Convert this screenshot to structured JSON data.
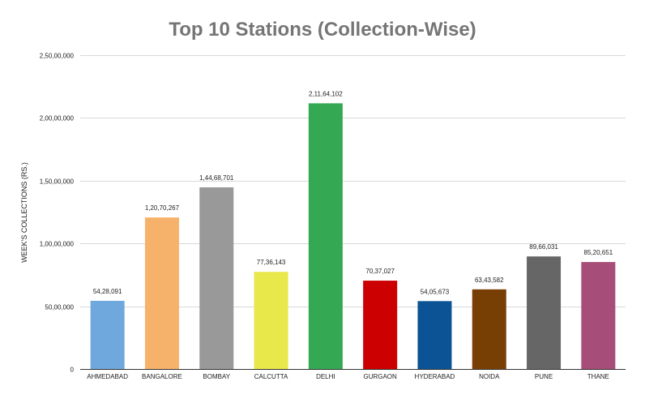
{
  "chart_data": {
    "type": "bar",
    "title": "Top 10 Stations (Collection-Wise)",
    "xlabel": "",
    "ylabel": "WEEK'S COLLECTIONS (RS.)",
    "ylim": [
      0,
      25000000
    ],
    "yticks": [
      0,
      5000000,
      10000000,
      15000000,
      20000000,
      25000000
    ],
    "ytick_labels": [
      "0",
      "50,00,000",
      "1,00,00,000",
      "1,50,00,000",
      "2,00,00,000",
      "2,50,00,000"
    ],
    "grid": true,
    "categories": [
      "AHMEDABAD",
      "BANGALORE",
      "BOMBAY",
      "CALCUTTA",
      "DELHI",
      "GURGAON",
      "HYDERABAD",
      "NOIDA",
      "PUNE",
      "THANE"
    ],
    "values": [
      5428091,
      12070267,
      14468701,
      7736143,
      21164102,
      7037027,
      5405673,
      6343582,
      8966031,
      8520651
    ],
    "data_labels": [
      "54,28,091",
      "1,20,70,267",
      "1,44,68,701",
      "77,36,143",
      "2,11,64,102",
      "70,37,027",
      "54,05,673",
      "63,43,582",
      "89,66,031",
      "85,20,651"
    ],
    "colors": [
      "#6fa8dc",
      "#f6b26b",
      "#999999",
      "#e8e84a",
      "#34a853",
      "#cc0000",
      "#0b5394",
      "#783f04",
      "#666666",
      "#a64d79"
    ]
  }
}
